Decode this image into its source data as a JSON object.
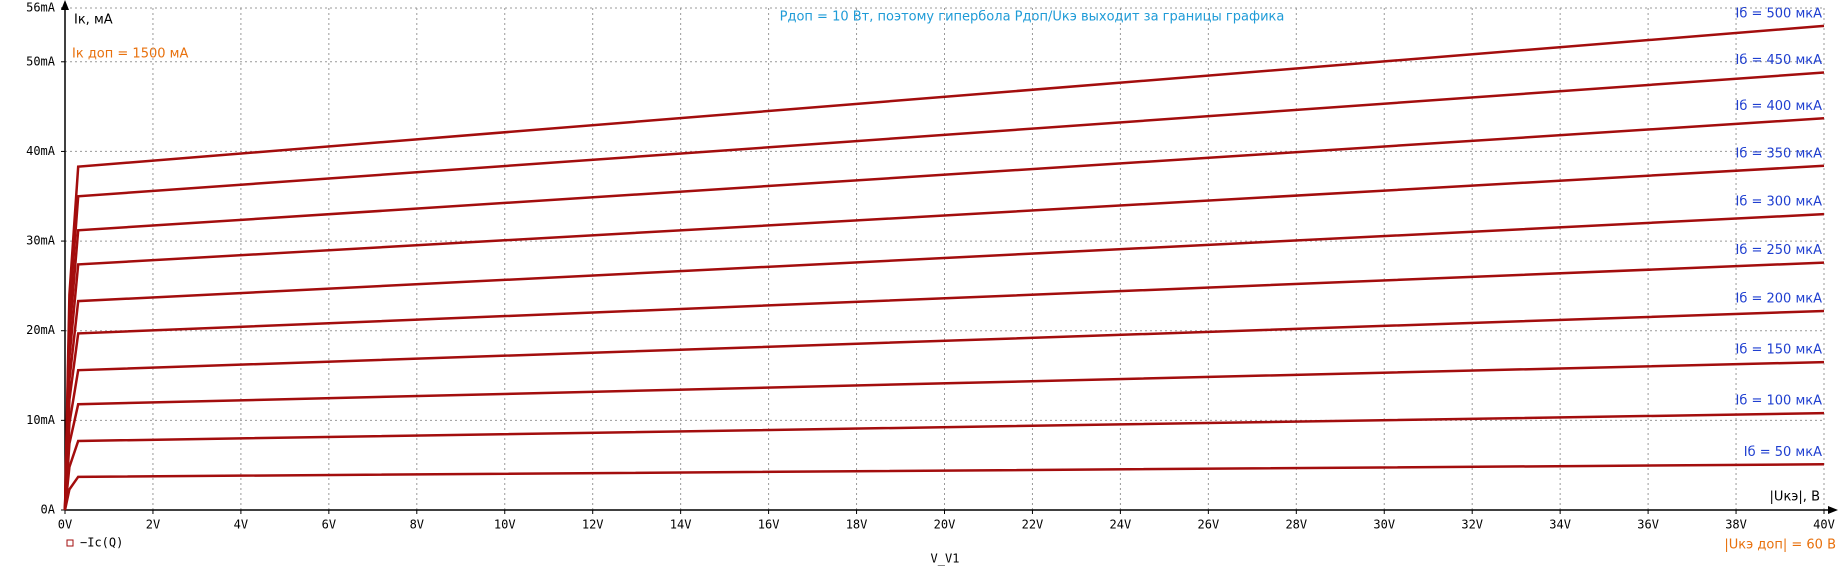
{
  "chart_data": {
    "type": "line",
    "y_label": "Iк, мА",
    "x_label": "|Uкэ|, В",
    "x_variable": "V_V1",
    "annotation": "Pдоп = 10 Вт, поэтому гипербола Pдоп/Uкэ выходит за границы графика",
    "ik_limit_note": "Iк доп = 1500 мА",
    "uke_limit_note": "|Uкэ доп| = 60 В",
    "legend_label": "−Ic(Q)",
    "color": "#a30d0d",
    "grid": true,
    "x": [
      0,
      0.1,
      0.3,
      40
    ],
    "series": [
      {
        "name": "Iб = 500 мкА",
        "values": [
          0,
          24,
          38.3,
          54.0
        ]
      },
      {
        "name": "Iб = 450 мкА",
        "values": [
          0,
          22,
          35.0,
          48.8
        ]
      },
      {
        "name": "Iб = 400 мкА",
        "values": [
          0,
          19.5,
          31.2,
          43.7
        ]
      },
      {
        "name": "Iб = 350 мкА",
        "values": [
          0,
          17,
          27.4,
          38.4
        ]
      },
      {
        "name": "Iб = 300 мкА",
        "values": [
          0,
          14.5,
          23.3,
          33.0
        ]
      },
      {
        "name": "Iб = 250 мкА",
        "values": [
          0,
          12.3,
          19.7,
          27.6
        ]
      },
      {
        "name": "Iб = 200 мкА",
        "values": [
          0,
          9.7,
          15.6,
          22.2
        ]
      },
      {
        "name": "Iб = 150 мкА",
        "values": [
          0,
          7.4,
          11.8,
          16.5
        ]
      },
      {
        "name": "Iб = 100 мкА",
        "values": [
          0,
          4.8,
          7.7,
          10.8
        ]
      },
      {
        "name": "Iб = 50 мкА",
        "values": [
          0,
          2.3,
          3.7,
          5.1
        ]
      }
    ],
    "xlim": [
      0,
      40
    ],
    "xticks": [
      {
        "value": 0,
        "label": "0V"
      },
      {
        "value": 2,
        "label": "2V"
      },
      {
        "value": 4,
        "label": "4V"
      },
      {
        "value": 6,
        "label": "6V"
      },
      {
        "value": 8,
        "label": "8V"
      },
      {
        "value": 10,
        "label": "10V"
      },
      {
        "value": 12,
        "label": "12V"
      },
      {
        "value": 14,
        "label": "14V"
      },
      {
        "value": 16,
        "label": "16V"
      },
      {
        "value": 18,
        "label": "18V"
      },
      {
        "value": 20,
        "label": "20V"
      },
      {
        "value": 22,
        "label": "22V"
      },
      {
        "value": 24,
        "label": "24V"
      },
      {
        "value": 26,
        "label": "26V"
      },
      {
        "value": 28,
        "label": "28V"
      },
      {
        "value": 30,
        "label": "30V"
      },
      {
        "value": 32,
        "label": "32V"
      },
      {
        "value": 34,
        "label": "34V"
      },
      {
        "value": 36,
        "label": "36V"
      },
      {
        "value": 38,
        "label": "38V"
      },
      {
        "value": 40,
        "label": "40V"
      }
    ],
    "ylim": [
      0,
      56
    ],
    "yticks": [
      {
        "value": 0,
        "label": "0A"
      },
      {
        "value": 10,
        "label": "10mA"
      },
      {
        "value": 20,
        "label": "20mA"
      },
      {
        "value": 30,
        "label": "30mA"
      },
      {
        "value": 40,
        "label": "40mA"
      },
      {
        "value": 50,
        "label": "50mA"
      },
      {
        "value": 56,
        "label": "56mA"
      }
    ]
  }
}
